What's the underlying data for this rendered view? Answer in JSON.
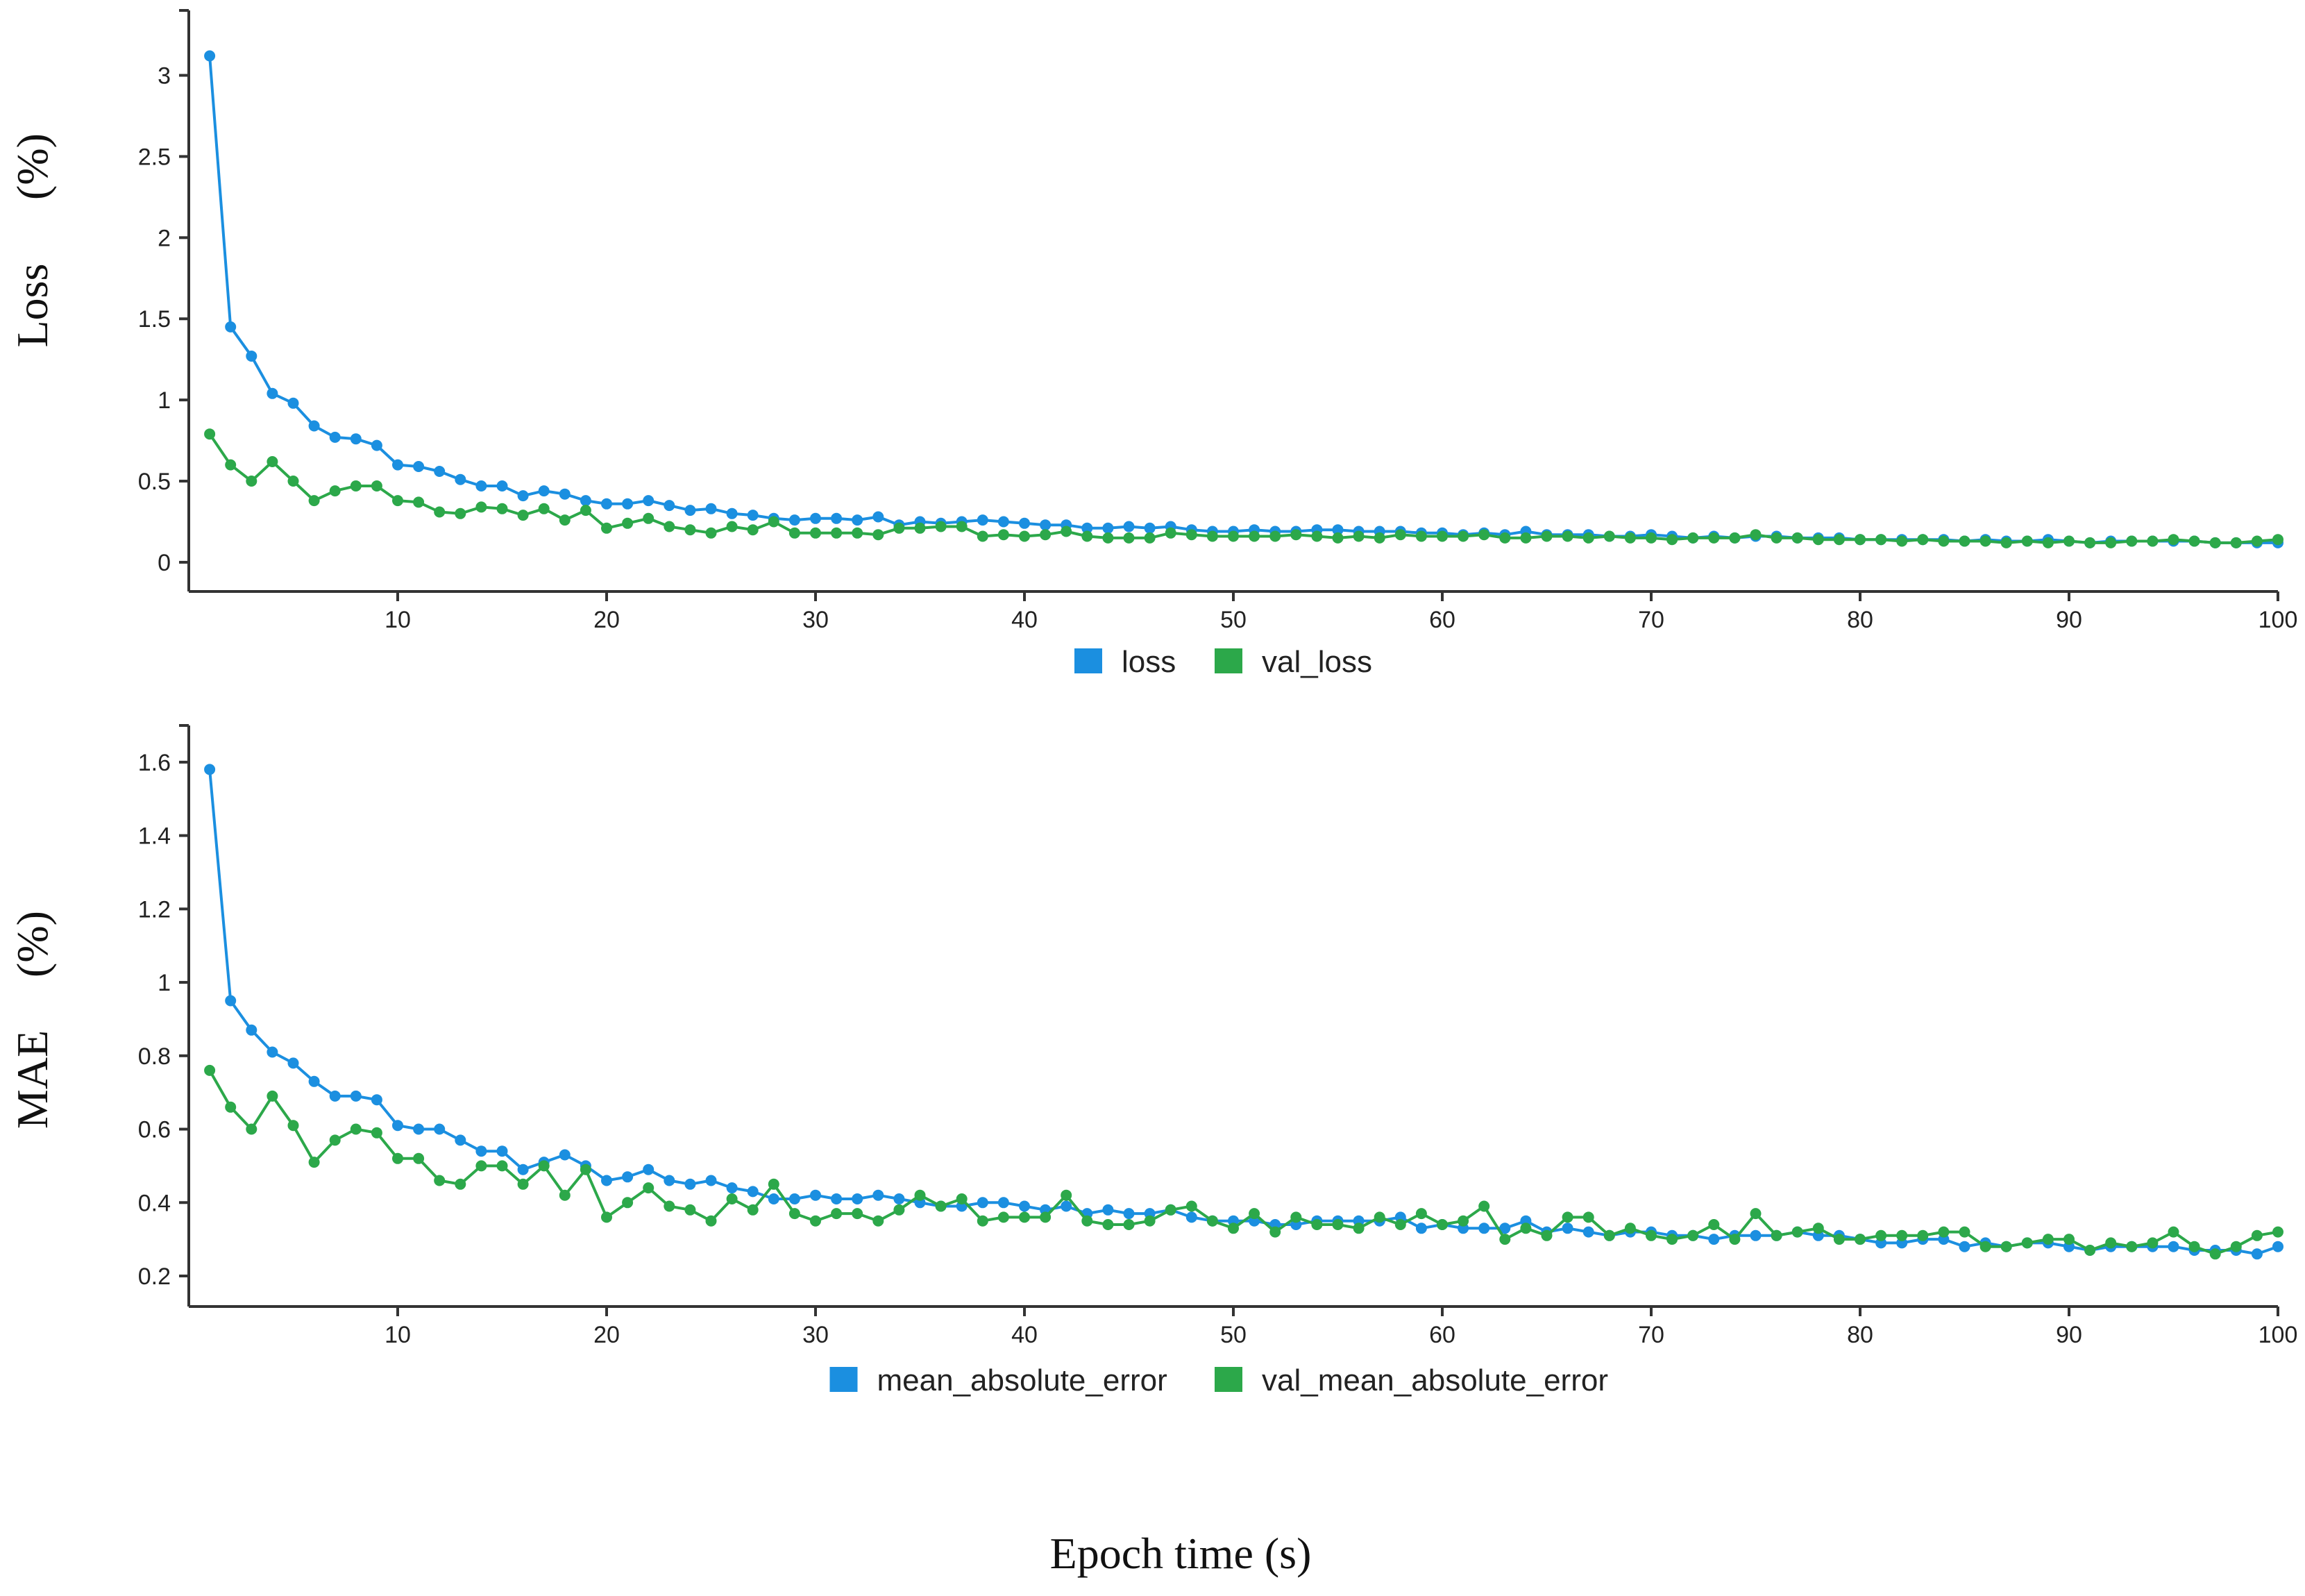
{
  "colors": {
    "train": "#1b8fe0",
    "val": "#2ca84a"
  },
  "xlabel": "Epoch time (s)",
  "chart_data": [
    {
      "type": "line",
      "id": "loss",
      "title": "",
      "ylabel": "Loss",
      "ylabel_unit": "(%)",
      "xlim": [
        0,
        100
      ],
      "ylim": [
        -0.15,
        3.4
      ],
      "xticks": [
        10,
        20,
        30,
        40,
        50,
        60,
        70,
        80,
        90,
        100
      ],
      "yticks": [
        0,
        0.5,
        1,
        1.5,
        2,
        2.5,
        3
      ],
      "legend": "bottom-center",
      "series": [
        {
          "name": "loss",
          "color": "#1b8fe0",
          "values": [
            3.12,
            1.45,
            1.27,
            1.04,
            0.98,
            0.84,
            0.77,
            0.76,
            0.72,
            0.6,
            0.59,
            0.56,
            0.51,
            0.47,
            0.47,
            0.41,
            0.44,
            0.42,
            0.38,
            0.36,
            0.36,
            0.38,
            0.35,
            0.32,
            0.33,
            0.3,
            0.29,
            0.27,
            0.26,
            0.27,
            0.27,
            0.26,
            0.28,
            0.23,
            0.25,
            0.24,
            0.25,
            0.26,
            0.25,
            0.24,
            0.23,
            0.23,
            0.21,
            0.21,
            0.22,
            0.21,
            0.22,
            0.2,
            0.19,
            0.19,
            0.2,
            0.19,
            0.19,
            0.2,
            0.2,
            0.19,
            0.19,
            0.19,
            0.18,
            0.18,
            0.17,
            0.18,
            0.17,
            0.19,
            0.17,
            0.17,
            0.17,
            0.16,
            0.16,
            0.17,
            0.16,
            0.15,
            0.16,
            0.15,
            0.16,
            0.16,
            0.15,
            0.15,
            0.15,
            0.14,
            0.14,
            0.14,
            0.14,
            0.14,
            0.13,
            0.14,
            0.13,
            0.13,
            0.14,
            0.13,
            0.12,
            0.13,
            0.13,
            0.13,
            0.13,
            0.13,
            0.12,
            0.12,
            0.12,
            0.12
          ]
        },
        {
          "name": "val_loss",
          "color": "#2ca84a",
          "values": [
            0.79,
            0.6,
            0.5,
            0.62,
            0.5,
            0.38,
            0.44,
            0.47,
            0.47,
            0.38,
            0.37,
            0.31,
            0.3,
            0.34,
            0.33,
            0.29,
            0.33,
            0.26,
            0.32,
            0.21,
            0.24,
            0.27,
            0.22,
            0.2,
            0.18,
            0.22,
            0.2,
            0.25,
            0.18,
            0.18,
            0.18,
            0.18,
            0.17,
            0.21,
            0.21,
            0.22,
            0.22,
            0.16,
            0.17,
            0.16,
            0.17,
            0.19,
            0.16,
            0.15,
            0.15,
            0.15,
            0.18,
            0.17,
            0.16,
            0.16,
            0.16,
            0.16,
            0.17,
            0.16,
            0.15,
            0.16,
            0.15,
            0.17,
            0.16,
            0.16,
            0.16,
            0.17,
            0.15,
            0.15,
            0.16,
            0.16,
            0.15,
            0.16,
            0.15,
            0.15,
            0.14,
            0.15,
            0.15,
            0.15,
            0.17,
            0.15,
            0.15,
            0.14,
            0.14,
            0.14,
            0.14,
            0.13,
            0.14,
            0.13,
            0.13,
            0.13,
            0.12,
            0.13,
            0.12,
            0.13,
            0.12,
            0.12,
            0.13,
            0.13,
            0.14,
            0.13,
            0.12,
            0.12,
            0.13,
            0.14
          ]
        }
      ]
    },
    {
      "type": "line",
      "id": "mae",
      "title": "",
      "ylabel": "MAE",
      "ylabel_unit": "(%)",
      "xlim": [
        0,
        100
      ],
      "ylim": [
        0.13,
        1.7
      ],
      "xticks": [
        10,
        20,
        30,
        40,
        50,
        60,
        70,
        80,
        90,
        100
      ],
      "yticks": [
        0.2,
        0.4,
        0.6,
        0.8,
        1,
        1.2,
        1.4,
        1.6
      ],
      "legend": "bottom-center",
      "series": [
        {
          "name": "mean_absolute_error",
          "color": "#1b8fe0",
          "values": [
            1.58,
            0.95,
            0.87,
            0.81,
            0.78,
            0.73,
            0.69,
            0.69,
            0.68,
            0.61,
            0.6,
            0.6,
            0.57,
            0.54,
            0.54,
            0.49,
            0.51,
            0.53,
            0.5,
            0.46,
            0.47,
            0.49,
            0.46,
            0.45,
            0.46,
            0.44,
            0.43,
            0.41,
            0.41,
            0.42,
            0.41,
            0.41,
            0.42,
            0.41,
            0.4,
            0.39,
            0.39,
            0.4,
            0.4,
            0.39,
            0.38,
            0.39,
            0.37,
            0.38,
            0.37,
            0.37,
            0.38,
            0.36,
            0.35,
            0.35,
            0.35,
            0.34,
            0.34,
            0.35,
            0.35,
            0.35,
            0.35,
            0.36,
            0.33,
            0.34,
            0.33,
            0.33,
            0.33,
            0.35,
            0.32,
            0.33,
            0.32,
            0.31,
            0.32,
            0.32,
            0.31,
            0.31,
            0.3,
            0.31,
            0.31,
            0.31,
            0.32,
            0.31,
            0.31,
            0.3,
            0.29,
            0.29,
            0.3,
            0.3,
            0.28,
            0.29,
            0.28,
            0.29,
            0.29,
            0.28,
            0.27,
            0.28,
            0.28,
            0.28,
            0.28,
            0.27,
            0.27,
            0.27,
            0.26,
            0.28
          ]
        },
        {
          "name": "val_mean_absolute_error",
          "color": "#2ca84a",
          "values": [
            0.76,
            0.66,
            0.6,
            0.69,
            0.61,
            0.51,
            0.57,
            0.6,
            0.59,
            0.52,
            0.52,
            0.46,
            0.45,
            0.5,
            0.5,
            0.45,
            0.5,
            0.42,
            0.49,
            0.36,
            0.4,
            0.44,
            0.39,
            0.38,
            0.35,
            0.41,
            0.38,
            0.45,
            0.37,
            0.35,
            0.37,
            0.37,
            0.35,
            0.38,
            0.42,
            0.39,
            0.41,
            0.35,
            0.36,
            0.36,
            0.36,
            0.42,
            0.35,
            0.34,
            0.34,
            0.35,
            0.38,
            0.39,
            0.35,
            0.33,
            0.37,
            0.32,
            0.36,
            0.34,
            0.34,
            0.33,
            0.36,
            0.34,
            0.37,
            0.34,
            0.35,
            0.39,
            0.3,
            0.33,
            0.31,
            0.36,
            0.36,
            0.31,
            0.33,
            0.31,
            0.3,
            0.31,
            0.34,
            0.3,
            0.37,
            0.31,
            0.32,
            0.33,
            0.3,
            0.3,
            0.31,
            0.31,
            0.31,
            0.32,
            0.32,
            0.28,
            0.28,
            0.29,
            0.3,
            0.3,
            0.27,
            0.29,
            0.28,
            0.29,
            0.32,
            0.28,
            0.26,
            0.28,
            0.31,
            0.32
          ]
        }
      ]
    }
  ]
}
